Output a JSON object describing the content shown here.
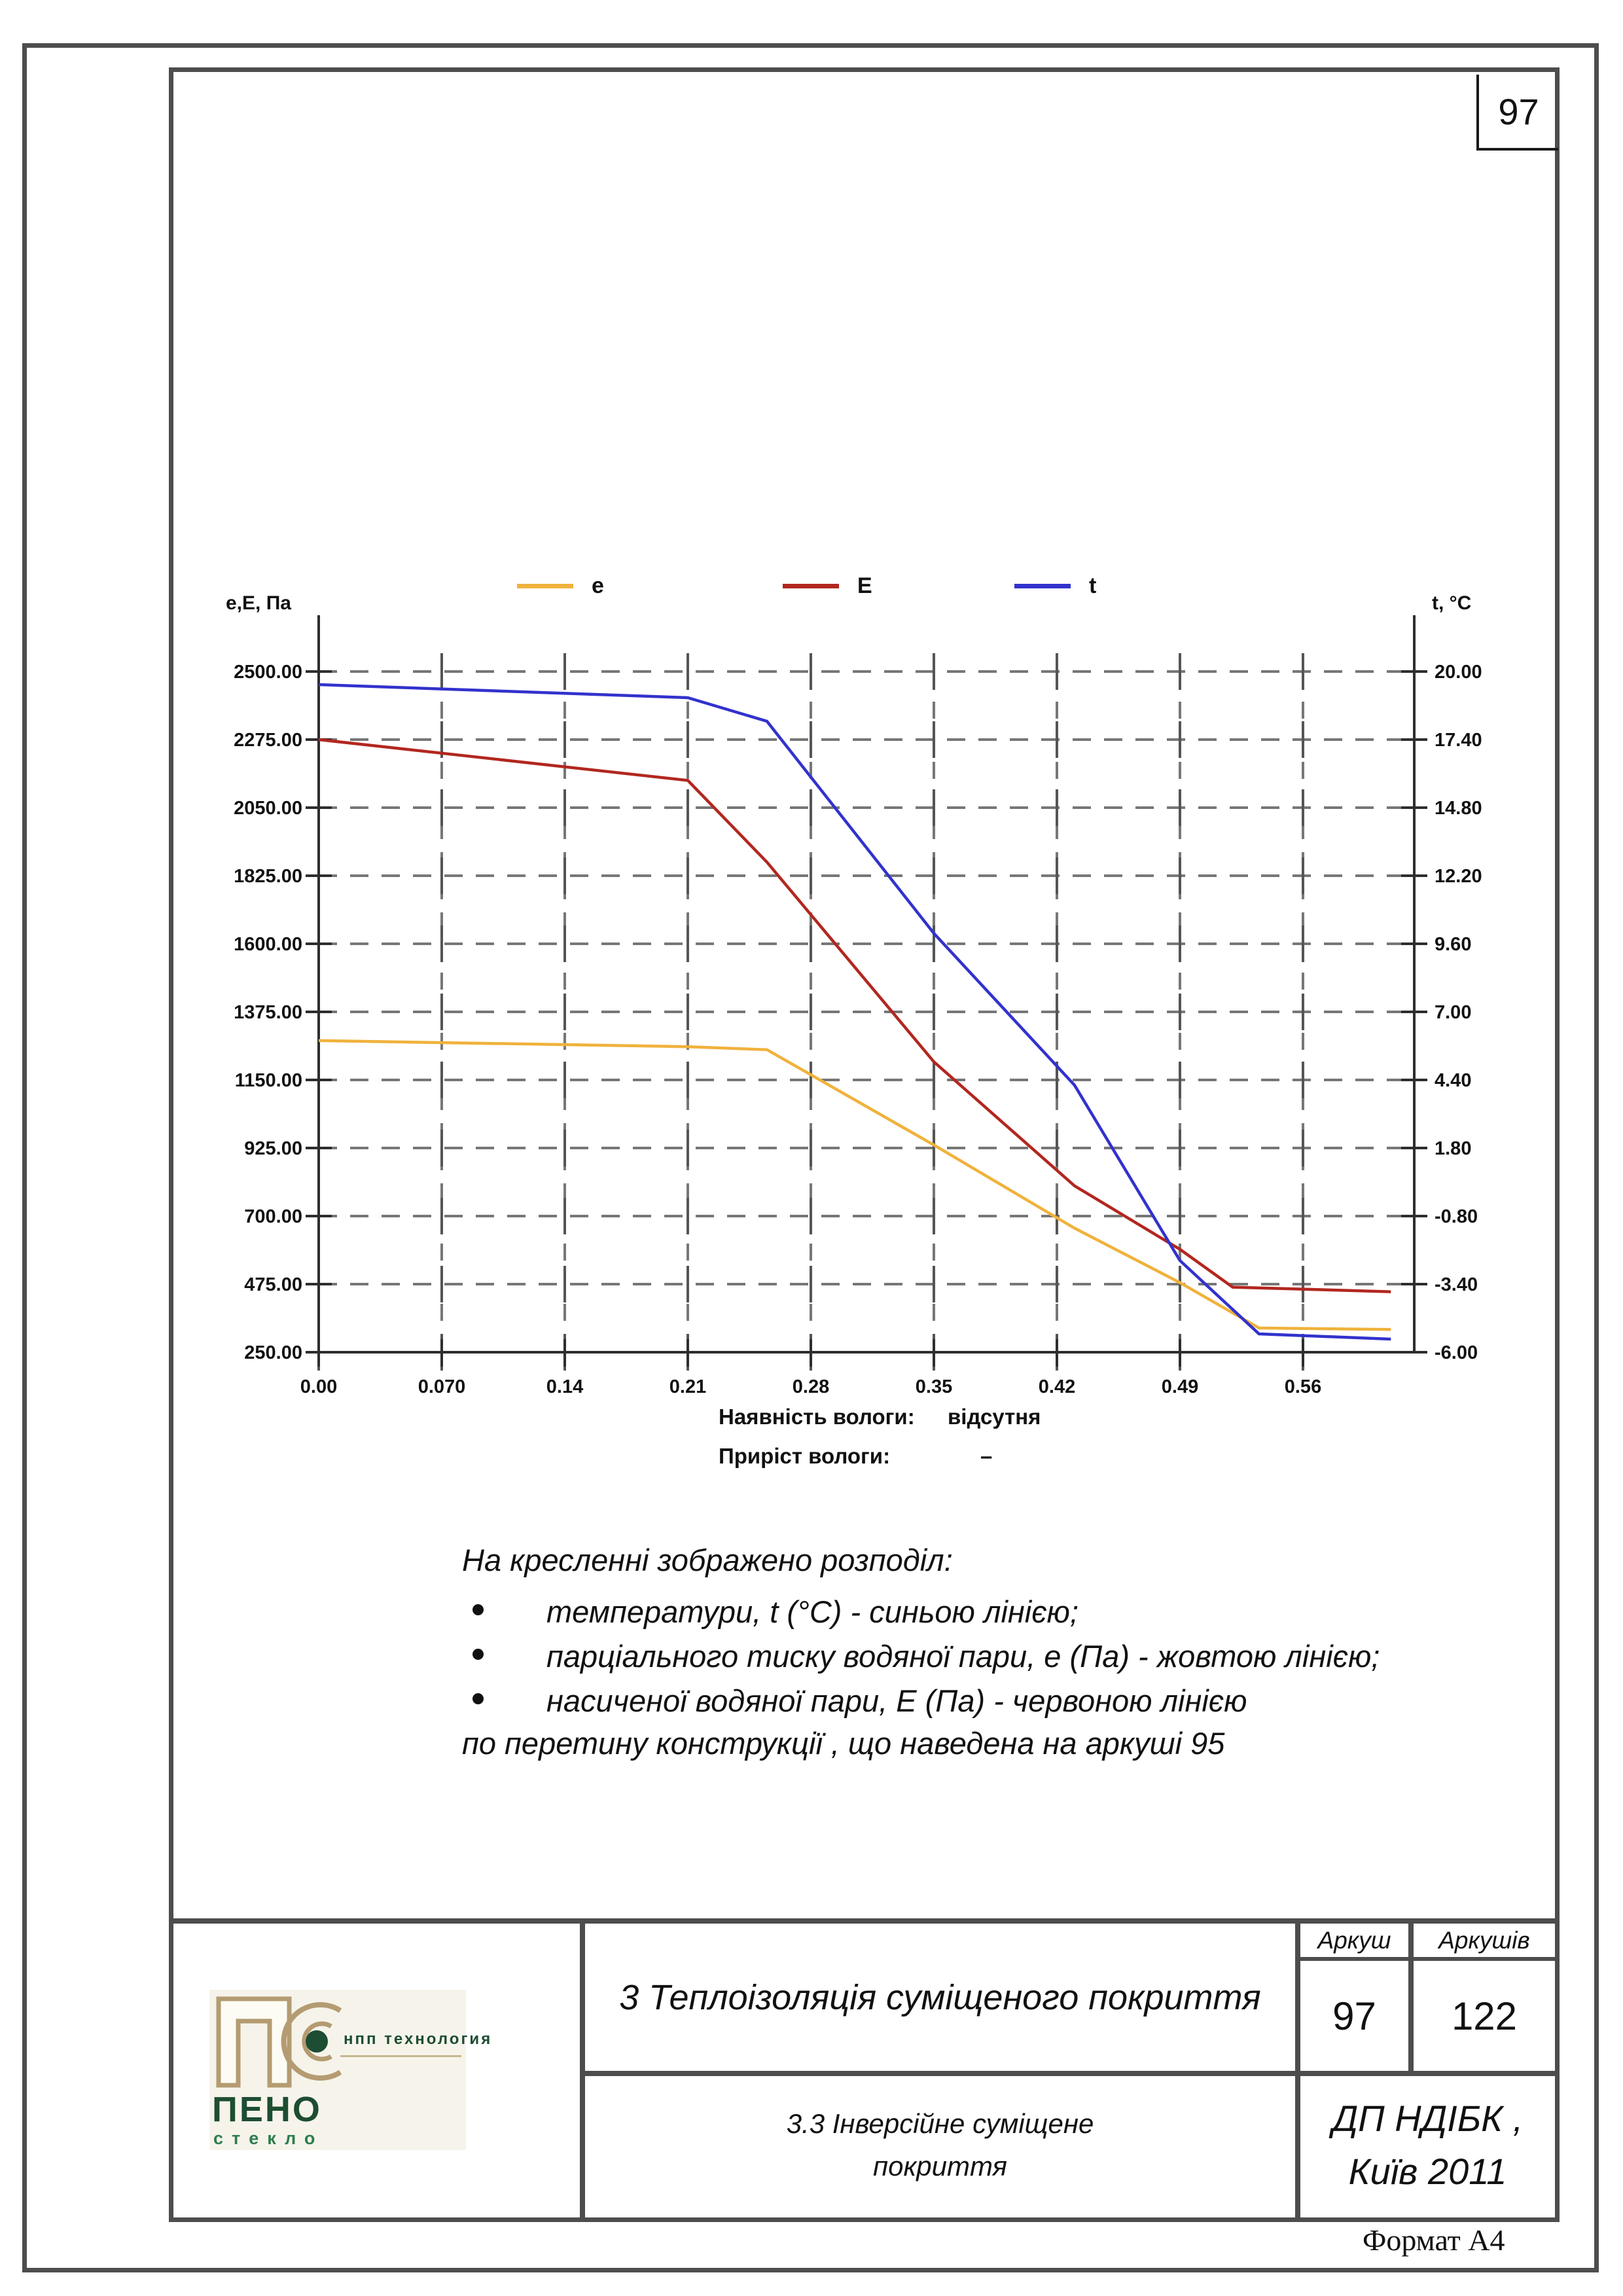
{
  "page": {
    "number": "97",
    "format_label": "Формат А4"
  },
  "chart": {
    "left_axis_title": "е,Е, Па",
    "right_axis_title": "t, °С",
    "legend": [
      {
        "label": "e",
        "color": "#f0b23c"
      },
      {
        "label": "E",
        "color": "#b2271f"
      },
      {
        "label": "t",
        "color": "#3232cd"
      }
    ],
    "x_tick_labels": [
      "0.00",
      "0.070",
      "0.14",
      "0.21",
      "0.28",
      "0.35",
      "0.42",
      "0.49",
      "0.56"
    ],
    "left_tick_labels": [
      "2500.00",
      "2275.00",
      "2050.00",
      "1825.00",
      "1600.00",
      "1375.00",
      "1150.00",
      "925.00",
      "700.00",
      "475.00",
      "250.00"
    ],
    "right_tick_labels": [
      "20.00",
      "17.40",
      "14.80",
      "12.20",
      "9.60",
      "7.00",
      "4.40",
      "1.80",
      "-0.80",
      "-3.40",
      "-6.00"
    ],
    "grid_color": "#777777",
    "axis_color": "#2e2e2e"
  },
  "chart_data": {
    "type": "line",
    "title": "",
    "xlabel": "",
    "ylabel_left": "е,Е, Па",
    "ylabel_right": "t, °С",
    "x_range": [
      0,
      0.61
    ],
    "left_ylim": [
      250,
      2500
    ],
    "right_ylim": [
      -6,
      20
    ],
    "grid": "dashed",
    "legend_position": "top",
    "series": [
      {
        "name": "e",
        "axis": "left",
        "unit": "Па",
        "color": "#f0b23c",
        "points": [
          [
            0,
            1280
          ],
          [
            0.21,
            1260
          ],
          [
            0.255,
            1250
          ],
          [
            0.35,
            935
          ],
          [
            0.43,
            660
          ],
          [
            0.49,
            480
          ],
          [
            0.535,
            330
          ],
          [
            0.61,
            325
          ]
        ]
      },
      {
        "name": "E",
        "axis": "left",
        "unit": "Па",
        "color": "#b2271f",
        "points": [
          [
            0,
            2275
          ],
          [
            0.21,
            2140
          ],
          [
            0.255,
            1870
          ],
          [
            0.35,
            1210
          ],
          [
            0.43,
            800
          ],
          [
            0.49,
            590
          ],
          [
            0.52,
            465
          ],
          [
            0.61,
            450
          ]
        ]
      },
      {
        "name": "t",
        "axis": "right",
        "unit": "°С",
        "color": "#3232cd",
        "points": [
          [
            0,
            19.5
          ],
          [
            0.21,
            19.0
          ],
          [
            0.255,
            18.1
          ],
          [
            0.35,
            10.0
          ],
          [
            0.43,
            4.2
          ],
          [
            0.49,
            -2.5
          ],
          [
            0.535,
            -5.3
          ],
          [
            0.61,
            -5.5
          ]
        ]
      }
    ]
  },
  "moisture": {
    "row1_label": "Наявність вологи:",
    "row1_value": "відсутня",
    "row2_label": "Приріст вологи:",
    "row2_value": "–"
  },
  "description": {
    "intro": "На кресленні зображено розподіл:",
    "bullets": [
      "температури, t (°С) - синьою лінією;",
      "парціального тиску водяної пари, е (Па) - жовтою лінією;",
      "насиченої водяної пари, Е (Па) - червоною лінією"
    ],
    "outro": "по перетину конструкції , що наведена на аркуші 95"
  },
  "title_block": {
    "section_title": "3 Теплоізоляція суміщеного покриття",
    "sheet_header": "Аркуш",
    "sheets_header": "Аркушів",
    "sheet_number": "97",
    "sheets_total": "122",
    "subsection_line1": "3.3 Інверсійне суміщене",
    "subsection_line2": "покриття",
    "org_line1": "ДП НДІБК ,",
    "org_line2": "Київ 2011"
  },
  "logo": {
    "monogram": "ПС",
    "npp_text": "нпп  технология",
    "peno_text": "ПЕНО",
    "steklo_text": "стекло"
  }
}
